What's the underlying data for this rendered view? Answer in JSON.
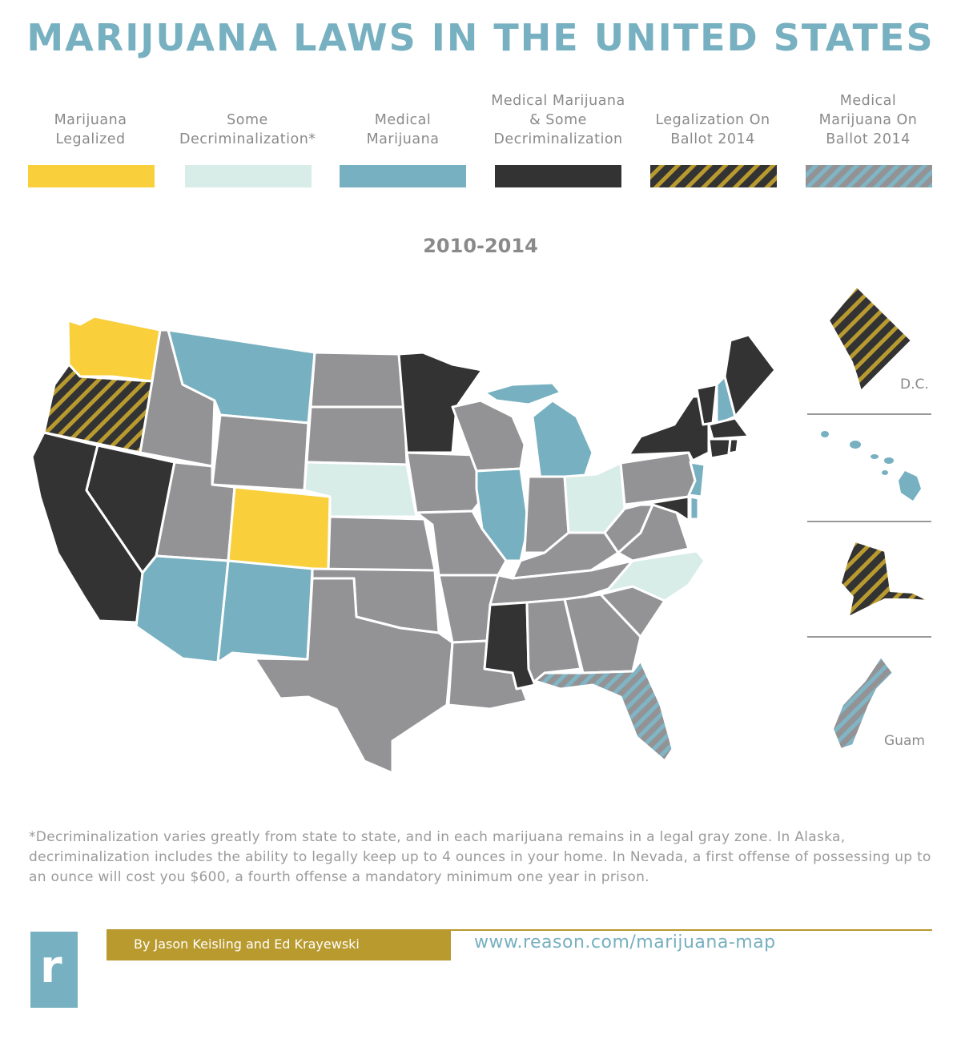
{
  "title": "MARIJUANA LAWS IN THE UNITED STATES",
  "legend": [
    {
      "label": "Marijuana Legalized",
      "lines": [
        "Marijuana",
        "Legalized"
      ],
      "fill": "#f9cf3b",
      "pattern": "none"
    },
    {
      "label": "Some Decriminalization*",
      "lines": [
        "Some",
        "Decriminalization*"
      ],
      "fill": "#d8ece8",
      "pattern": "none"
    },
    {
      "label": "Medical Marijuana",
      "lines": [
        "Medical",
        "Marijuana"
      ],
      "fill": "#77b0c0",
      "pattern": "none"
    },
    {
      "label": "Medical Marijuana & Some Decriminalization",
      "lines": [
        "Medical Marijuana",
        "& Some",
        "Decriminalization"
      ],
      "fill": "#333333",
      "pattern": "none"
    },
    {
      "label": "Legalization On Ballot 2014",
      "lines": [
        "Legalization On",
        "Ballot 2014"
      ],
      "fill": "#333333",
      "pattern": "gold-stripes"
    },
    {
      "label": "Medical Marijuana On Ballot 2014",
      "lines": [
        "Medical",
        "Marijuana On",
        "Ballot 2014"
      ],
      "fill": "#8e8e8e",
      "pattern": "blue-stripes"
    }
  ],
  "map_period": "2010-2014",
  "colors": {
    "legalized": "#f9cf3b",
    "decrim": "#d8ece8",
    "medical": "#77b0c0",
    "medical_decrim": "#333333",
    "no_change": "#939396",
    "stripe_gold": "#b89a2e",
    "stripe_blue": "#7fb5c4"
  },
  "states": {
    "Washington": "legalized",
    "Oregon": "legalization-ballot-2014",
    "California": "medical_decrim",
    "Nevada": "medical_decrim",
    "Idaho": "no_change",
    "Montana": "medical",
    "Wyoming": "no_change",
    "Utah": "no_change",
    "Colorado": "legalized",
    "Arizona": "medical",
    "New Mexico": "medical",
    "North Dakota": "no_change",
    "South Dakota": "no_change",
    "Nebraska": "decrim",
    "Kansas": "no_change",
    "Oklahoma": "no_change",
    "Texas": "no_change",
    "Minnesota": "medical_decrim",
    "Iowa": "no_change",
    "Missouri": "no_change",
    "Arkansas": "no_change",
    "Louisiana": "no_change",
    "Wisconsin": "no_change",
    "Illinois": "medical",
    "Michigan": "medical",
    "Indiana": "no_change",
    "Ohio": "decrim",
    "Kentucky": "no_change",
    "Tennessee": "no_change",
    "Mississippi": "medical_decrim",
    "Alabama": "no_change",
    "Georgia": "no_change",
    "Florida": "medical-ballot-2014",
    "South Carolina": "no_change",
    "North Carolina": "decrim",
    "Virginia": "no_change",
    "West Virginia": "no_change",
    "Pennsylvania": "no_change",
    "New York": "medical_decrim",
    "Vermont": "medical_decrim",
    "New Hampshire": "medical",
    "Maine": "medical_decrim",
    "Massachusetts": "medical_decrim",
    "Connecticut": "medical_decrim",
    "Rhode Island": "medical_decrim",
    "New Jersey": "medical",
    "Delaware": "medical",
    "Maryland": "medical_decrim",
    "D.C.": "legalization-ballot-2014",
    "Hawaii": "medical",
    "Alaska": "legalization-ballot-2014",
    "Guam": "medical-ballot-2014"
  },
  "insets": {
    "dc": "D.C.",
    "guam": "Guam"
  },
  "footnote": "*Decriminalization varies greatly from state to state, and in each marijuana remains in a legal gray zone. In Alaska, decriminalization includes the ability to legally keep up to 4 ounces in your home. In Nevada, a first offense of possessing up to an ounce will cost you $600, a fourth offense a mandatory minimum one year in prison.",
  "byline": "By Jason Keisling and Ed Krayewski",
  "url": "www.reason.com/marijuana-map",
  "logo_letter": "r"
}
